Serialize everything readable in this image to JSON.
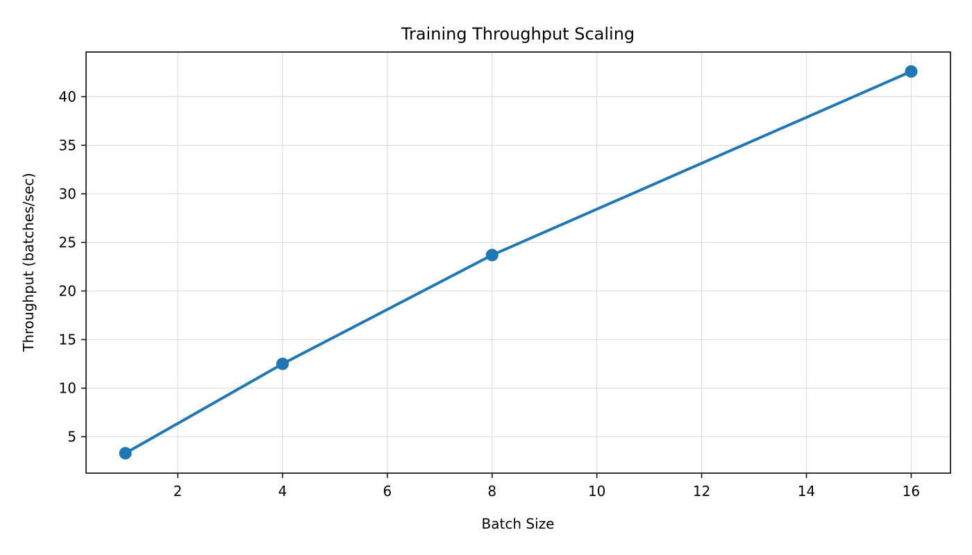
{
  "colors": {
    "series": "#1f77b4",
    "grid": "#dddddd",
    "axes": "#000000",
    "background": "#ffffff"
  },
  "chart_data": {
    "type": "line",
    "title": "Training Throughput Scaling",
    "xlabel": "Batch Size",
    "ylabel": "Throughput (batches/sec)",
    "xlim": [
      0.25,
      16.75
    ],
    "ylim": [
      1.25,
      44.6
    ],
    "xticks": [
      2,
      4,
      6,
      8,
      10,
      12,
      14,
      16
    ],
    "yticks": [
      5,
      10,
      15,
      20,
      25,
      30,
      35,
      40
    ],
    "grid": true,
    "marker": "circle",
    "series": [
      {
        "x": [
          1,
          4,
          8,
          16
        ],
        "y": [
          3.3,
          12.5,
          23.7,
          42.6
        ]
      }
    ]
  }
}
